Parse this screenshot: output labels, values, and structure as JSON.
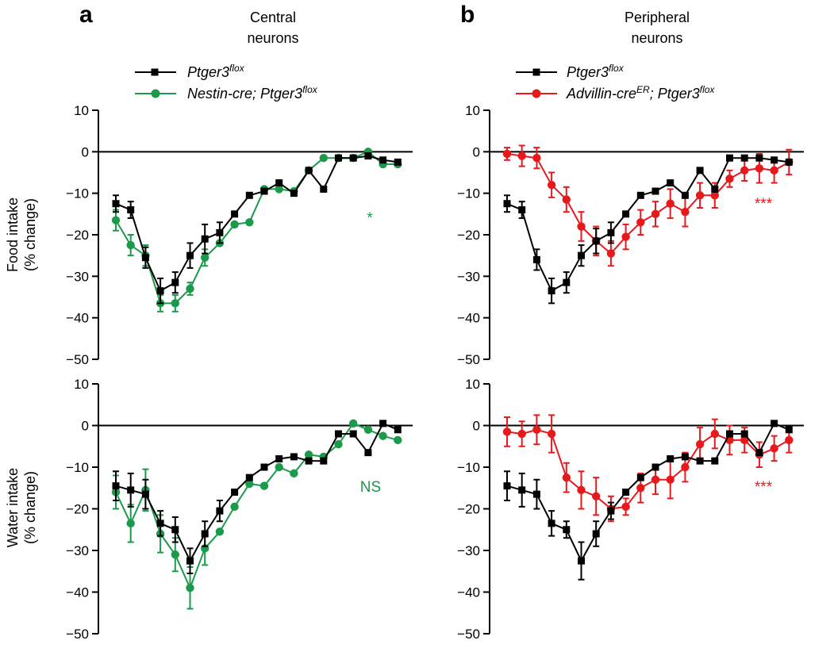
{
  "figure": {
    "panel_a": {
      "letter": "a",
      "title_line1": "Central",
      "title_line2": "neurons"
    },
    "panel_b": {
      "letter": "b",
      "title_line1": "Peripheral",
      "title_line2": "neurons"
    },
    "legend_a": [
      {
        "base": "Ptger3",
        "sup": "flox",
        "rest": "",
        "sup2": "",
        "color": "#000000",
        "marker": "square"
      },
      {
        "base": "Nestin-cre; Ptger3",
        "sup": "flox",
        "rest": "",
        "sup2": "",
        "color": "#1a9a4a",
        "marker": "circle"
      }
    ],
    "legend_b": [
      {
        "base": "Ptger3",
        "sup": "flox",
        "rest": "",
        "sup2": "",
        "color": "#000000",
        "marker": "square"
      },
      {
        "base": "Advillin-cre",
        "sup": "ER",
        "rest": "; Ptger3",
        "sup2": "flox",
        "color": "#e8191c",
        "marker": "circle"
      }
    ],
    "row_labels": {
      "food": {
        "line1": "Food intake",
        "line2": "(% change)"
      },
      "water": {
        "line1": "Water intake",
        "line2": "(% change)"
      }
    },
    "colors": {
      "control": "#000000",
      "nestin": "#1a9a4a",
      "advillin": "#e8191c"
    }
  },
  "chart_data": [
    {
      "id": "a_food",
      "type": "line",
      "ylim": [
        -50,
        10
      ],
      "yticks": [
        10,
        0,
        -10,
        -20,
        -30,
        -40,
        -50
      ],
      "ylabel": "Food intake (% change)",
      "significance": "*",
      "significance_color": "#1a9a4a",
      "series": [
        {
          "name": "Ptger3flox",
          "color": "#000000",
          "marker": "square",
          "x": [
            1,
            2,
            3,
            4,
            5,
            6,
            7,
            8,
            9,
            10,
            11,
            12,
            13,
            14,
            15,
            16,
            17,
            18,
            19,
            20
          ],
          "y": [
            -12.5,
            -14,
            -25.5,
            -33.5,
            -31.5,
            -25,
            -21,
            -19.5,
            -15,
            -10.5,
            -9.5,
            -7.5,
            -10,
            -4.5,
            -9,
            -1.5,
            -1.5,
            -1,
            -2,
            -2.5
          ],
          "err": [
            2,
            2,
            2.5,
            3,
            2.5,
            3,
            3.5,
            2.5,
            0,
            0,
            0,
            0,
            0,
            0,
            0,
            0,
            0,
            0,
            0,
            0
          ]
        },
        {
          "name": "Nestin-cre; Ptger3flox",
          "color": "#1a9a4a",
          "marker": "circle",
          "x": [
            1,
            2,
            3,
            4,
            5,
            6,
            7,
            8,
            9,
            10,
            11,
            12,
            13,
            14,
            15,
            16,
            17,
            18,
            19,
            20
          ],
          "y": [
            -16.5,
            -22.5,
            -25,
            -36.5,
            -36.5,
            -33,
            -25.5,
            -22,
            -17.5,
            -17,
            -9,
            -9,
            -9.5,
            -4.5,
            -1.5,
            -1.5,
            -1.5,
            0,
            -3,
            -3
          ],
          "err": [
            2.5,
            2.5,
            2.5,
            2,
            2,
            1.5,
            2,
            0,
            0,
            0,
            0,
            0,
            0,
            0,
            0,
            0,
            0,
            0,
            0,
            0
          ]
        }
      ]
    },
    {
      "id": "b_food",
      "type": "line",
      "ylim": [
        -50,
        10
      ],
      "yticks": [
        10,
        0,
        -10,
        -20,
        -30,
        -40,
        -50
      ],
      "ylabel": "Food intake (% change)",
      "significance": "***",
      "significance_color": "#e8191c",
      "series": [
        {
          "name": "Ptger3flox",
          "color": "#000000",
          "marker": "square",
          "x": [
            1,
            2,
            3,
            4,
            5,
            6,
            7,
            8,
            9,
            10,
            11,
            12,
            13,
            14,
            15,
            16,
            17,
            18,
            19,
            20
          ],
          "y": [
            -12.5,
            -14,
            -26,
            -33.5,
            -31.5,
            -25,
            -21.5,
            -19.5,
            -15,
            -10.5,
            -9.5,
            -7.5,
            -10.5,
            -4.5,
            -9,
            -1.5,
            -1.5,
            -1.5,
            -2,
            -2.5
          ],
          "err": [
            2,
            2,
            2.5,
            3,
            2.5,
            2.5,
            3,
            2.5,
            0,
            0,
            0,
            0,
            0,
            0,
            0,
            0,
            0,
            0,
            0,
            0
          ]
        },
        {
          "name": "Advillin-creER; Ptger3flox",
          "color": "#e8191c",
          "marker": "circle",
          "x": [
            1,
            2,
            3,
            4,
            5,
            6,
            7,
            8,
            9,
            10,
            11,
            12,
            13,
            14,
            15,
            16,
            17,
            18,
            19,
            20
          ],
          "y": [
            -0.5,
            -1,
            -1.5,
            -8,
            -11.5,
            -18,
            -21.5,
            -24.5,
            -20.5,
            -17,
            -15,
            -12.5,
            -14.5,
            -10.5,
            -10.5,
            -6.5,
            -4.5,
            -4,
            -4.5,
            -2.5
          ],
          "err": [
            1.5,
            2.5,
            2.5,
            3,
            3,
            3.5,
            3.5,
            3,
            3,
            3,
            3,
            3.5,
            3.5,
            3,
            3,
            2,
            2.5,
            3.5,
            3,
            3
          ]
        }
      ]
    },
    {
      "id": "a_water",
      "type": "line",
      "ylim": [
        -50,
        10
      ],
      "yticks": [
        10,
        0,
        -10,
        -20,
        -30,
        -40,
        -50
      ],
      "ylabel": "Water intake (% change)",
      "significance": "NS",
      "significance_color": "#1a9a4a",
      "series": [
        {
          "name": "Ptger3flox",
          "color": "#000000",
          "marker": "square",
          "x": [
            1,
            2,
            3,
            4,
            5,
            6,
            7,
            8,
            9,
            10,
            11,
            12,
            13,
            14,
            15,
            16,
            17,
            18,
            19,
            20
          ],
          "y": [
            -14.5,
            -15.5,
            -16.5,
            -23.5,
            -25,
            -32.5,
            -26,
            -20.5,
            -16,
            -12.5,
            -10,
            -8,
            -7.5,
            -8.5,
            -8.5,
            -2,
            -2,
            -6.5,
            0.5,
            -1
          ],
          "err": [
            3.5,
            4,
            3.5,
            3,
            3,
            3,
            3,
            2.5,
            0,
            0,
            0,
            0,
            0,
            0,
            0,
            0,
            0,
            0,
            0,
            0
          ]
        },
        {
          "name": "Nestin-cre; Ptger3flox",
          "color": "#1a9a4a",
          "marker": "circle",
          "x": [
            1,
            2,
            3,
            4,
            5,
            6,
            7,
            8,
            9,
            10,
            11,
            12,
            13,
            14,
            15,
            16,
            17,
            18,
            19,
            20
          ],
          "y": [
            -16,
            -23.5,
            -15.5,
            -26,
            -31,
            -39,
            -29.5,
            -25.5,
            -19.5,
            -14,
            -14.5,
            -10,
            -11.5,
            -7,
            -7.5,
            -4.5,
            0.5,
            -1,
            -2.5,
            -3.5
          ],
          "err": [
            4,
            4.5,
            5,
            4.5,
            4,
            5,
            4,
            0,
            0,
            0,
            0,
            0,
            0,
            0,
            0,
            0,
            0,
            0,
            0,
            0
          ]
        }
      ]
    },
    {
      "id": "b_water",
      "type": "line",
      "ylim": [
        -50,
        10
      ],
      "yticks": [
        10,
        0,
        -10,
        -20,
        -30,
        -40,
        -50
      ],
      "ylabel": "Water intake (% change)",
      "significance": "***",
      "significance_color": "#e8191c",
      "series": [
        {
          "name": "Ptger3flox",
          "color": "#000000",
          "marker": "square",
          "x": [
            1,
            2,
            3,
            4,
            5,
            6,
            7,
            8,
            9,
            10,
            11,
            12,
            13,
            14,
            15,
            16,
            17,
            18,
            19,
            20
          ],
          "y": [
            -14.5,
            -15.5,
            -16.5,
            -23.5,
            -25,
            -32.5,
            -26,
            -20.5,
            -16,
            -12.5,
            -10,
            -8,
            -7.5,
            -8.5,
            -8.5,
            -2,
            -2,
            -6.5,
            0.5,
            -1
          ],
          "err": [
            3.5,
            4,
            3.5,
            3,
            2,
            4.5,
            3,
            2,
            0,
            0,
            0,
            0,
            0,
            0,
            0,
            0,
            0,
            0,
            0,
            0
          ]
        },
        {
          "name": "Advillin-creER; Ptger3flox",
          "color": "#e8191c",
          "marker": "circle",
          "x": [
            1,
            2,
            3,
            4,
            5,
            6,
            7,
            8,
            9,
            10,
            11,
            12,
            13,
            14,
            15,
            16,
            17,
            18,
            19,
            20
          ],
          "y": [
            -1.5,
            -2,
            -1,
            -2,
            -12.5,
            -15.5,
            -17,
            -20,
            -19.5,
            -15,
            -13,
            -13,
            -10,
            -4.5,
            -2,
            -3.5,
            -3.5,
            -7,
            -5.5,
            -3.5
          ],
          "err": [
            3.5,
            3,
            3.5,
            4.5,
            3.5,
            4.5,
            4.5,
            3,
            2,
            3.5,
            3.5,
            4.5,
            3.5,
            4,
            3.5,
            3.5,
            3,
            3,
            3,
            3
          ]
        }
      ]
    }
  ]
}
